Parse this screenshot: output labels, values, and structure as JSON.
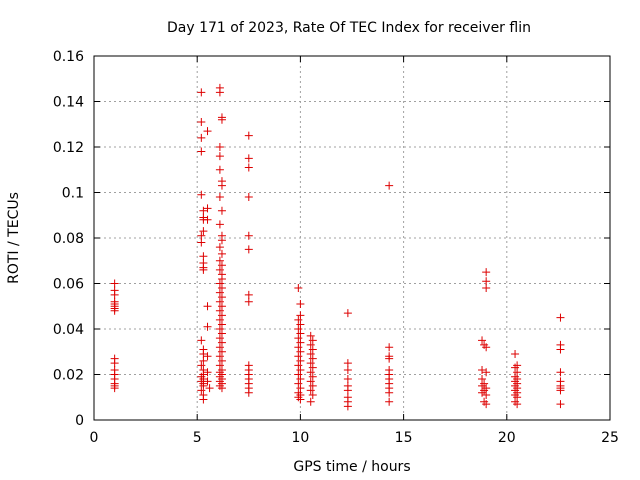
{
  "chart_data": {
    "type": "scatter",
    "title": "Day 171 of 2023, Rate Of TEC Index for receiver flin",
    "xlabel": "GPS time / hours",
    "ylabel": "ROTI / TECUs",
    "xlim": [
      0,
      25
    ],
    "ylim": [
      0,
      0.16
    ],
    "x_ticks": [
      "0",
      "5",
      "10",
      "15",
      "20",
      "25"
    ],
    "y_ticks": [
      "0",
      "0.02",
      "0.04",
      "0.06",
      "0.08",
      "0.1",
      "0.12",
      "0.14",
      "0.16"
    ],
    "grid": true,
    "marker": "plus",
    "color": "#dd0000",
    "series": [
      {
        "points": [
          [
            1.0,
            0.06
          ],
          [
            1.0,
            0.057
          ],
          [
            1.0,
            0.055
          ],
          [
            1.0,
            0.052
          ],
          [
            1.0,
            0.051
          ],
          [
            1.0,
            0.05
          ],
          [
            1.0,
            0.049
          ],
          [
            1.0,
            0.048
          ],
          [
            1.0,
            0.027
          ],
          [
            1.0,
            0.025
          ],
          [
            1.0,
            0.022
          ],
          [
            1.0,
            0.02
          ],
          [
            1.0,
            0.018
          ],
          [
            1.0,
            0.016
          ],
          [
            1.0,
            0.015
          ],
          [
            1.0,
            0.014
          ],
          [
            5.2,
            0.144
          ],
          [
            5.2,
            0.131
          ],
          [
            5.2,
            0.124
          ],
          [
            5.2,
            0.118
          ],
          [
            5.2,
            0.099
          ],
          [
            5.3,
            0.092
          ],
          [
            5.3,
            0.089
          ],
          [
            5.3,
            0.088
          ],
          [
            5.3,
            0.083
          ],
          [
            5.2,
            0.081
          ],
          [
            5.2,
            0.078
          ],
          [
            5.3,
            0.072
          ],
          [
            5.3,
            0.069
          ],
          [
            5.3,
            0.067
          ],
          [
            5.3,
            0.066
          ],
          [
            5.5,
            0.127
          ],
          [
            5.5,
            0.093
          ],
          [
            5.5,
            0.088
          ],
          [
            5.5,
            0.05
          ],
          [
            5.5,
            0.041
          ],
          [
            5.2,
            0.035
          ],
          [
            5.3,
            0.031
          ],
          [
            5.3,
            0.029
          ],
          [
            5.3,
            0.026
          ],
          [
            5.2,
            0.024
          ],
          [
            5.3,
            0.022
          ],
          [
            5.3,
            0.02
          ],
          [
            5.2,
            0.019
          ],
          [
            5.3,
            0.018
          ],
          [
            5.2,
            0.017
          ],
          [
            5.3,
            0.016
          ],
          [
            5.3,
            0.015
          ],
          [
            5.2,
            0.013
          ],
          [
            5.3,
            0.011
          ],
          [
            5.3,
            0.009
          ],
          [
            5.5,
            0.028
          ],
          [
            5.5,
            0.021
          ],
          [
            5.5,
            0.017
          ],
          [
            5.6,
            0.014
          ],
          [
            6.1,
            0.146
          ],
          [
            6.1,
            0.144
          ],
          [
            6.2,
            0.133
          ],
          [
            6.2,
            0.132
          ],
          [
            6.1,
            0.12
          ],
          [
            6.1,
            0.116
          ],
          [
            6.1,
            0.11
          ],
          [
            6.2,
            0.105
          ],
          [
            6.2,
            0.103
          ],
          [
            6.1,
            0.098
          ],
          [
            6.2,
            0.092
          ],
          [
            6.1,
            0.086
          ],
          [
            6.2,
            0.081
          ],
          [
            6.2,
            0.079
          ],
          [
            6.1,
            0.076
          ],
          [
            6.2,
            0.073
          ],
          [
            6.1,
            0.07
          ],
          [
            6.2,
            0.068
          ],
          [
            6.1,
            0.066
          ],
          [
            6.2,
            0.064
          ],
          [
            6.2,
            0.062
          ],
          [
            6.1,
            0.06
          ],
          [
            6.2,
            0.058
          ],
          [
            6.1,
            0.056
          ],
          [
            6.2,
            0.054
          ],
          [
            6.1,
            0.052
          ],
          [
            6.2,
            0.05
          ],
          [
            6.1,
            0.048
          ],
          [
            6.2,
            0.046
          ],
          [
            6.1,
            0.044
          ],
          [
            6.2,
            0.042
          ],
          [
            6.1,
            0.04
          ],
          [
            6.2,
            0.038
          ],
          [
            6.1,
            0.036
          ],
          [
            6.2,
            0.034
          ],
          [
            6.1,
            0.032
          ],
          [
            6.2,
            0.03
          ],
          [
            6.1,
            0.028
          ],
          [
            6.2,
            0.026
          ],
          [
            6.1,
            0.024
          ],
          [
            6.2,
            0.022
          ],
          [
            6.1,
            0.021
          ],
          [
            6.2,
            0.02
          ],
          [
            6.1,
            0.019
          ],
          [
            6.2,
            0.018
          ],
          [
            6.1,
            0.017
          ],
          [
            6.2,
            0.016
          ],
          [
            6.1,
            0.015
          ],
          [
            6.2,
            0.014
          ],
          [
            7.5,
            0.125
          ],
          [
            7.5,
            0.115
          ],
          [
            7.5,
            0.111
          ],
          [
            7.5,
            0.098
          ],
          [
            7.5,
            0.081
          ],
          [
            7.5,
            0.075
          ],
          [
            7.5,
            0.055
          ],
          [
            7.5,
            0.052
          ],
          [
            7.5,
            0.024
          ],
          [
            7.5,
            0.022
          ],
          [
            7.5,
            0.02
          ],
          [
            7.5,
            0.018
          ],
          [
            7.5,
            0.016
          ],
          [
            7.5,
            0.014
          ],
          [
            7.5,
            0.012
          ],
          [
            9.9,
            0.058
          ],
          [
            10.0,
            0.051
          ],
          [
            10.0,
            0.046
          ],
          [
            9.9,
            0.044
          ],
          [
            10.0,
            0.042
          ],
          [
            9.9,
            0.04
          ],
          [
            10.0,
            0.038
          ],
          [
            9.9,
            0.036
          ],
          [
            10.0,
            0.034
          ],
          [
            9.9,
            0.032
          ],
          [
            10.0,
            0.03
          ],
          [
            9.9,
            0.028
          ],
          [
            10.0,
            0.026
          ],
          [
            9.9,
            0.024
          ],
          [
            10.0,
            0.022
          ],
          [
            9.9,
            0.02
          ],
          [
            10.0,
            0.018
          ],
          [
            9.9,
            0.016
          ],
          [
            10.0,
            0.014
          ],
          [
            9.9,
            0.012
          ],
          [
            10.0,
            0.011
          ],
          [
            9.9,
            0.01
          ],
          [
            10.0,
            0.009
          ],
          [
            10.5,
            0.037
          ],
          [
            10.6,
            0.035
          ],
          [
            10.5,
            0.033
          ],
          [
            10.6,
            0.031
          ],
          [
            10.5,
            0.029
          ],
          [
            10.6,
            0.027
          ],
          [
            10.5,
            0.025
          ],
          [
            10.6,
            0.023
          ],
          [
            10.5,
            0.021
          ],
          [
            10.6,
            0.019
          ],
          [
            10.5,
            0.017
          ],
          [
            10.6,
            0.015
          ],
          [
            10.5,
            0.013
          ],
          [
            10.6,
            0.011
          ],
          [
            10.5,
            0.008
          ],
          [
            12.3,
            0.047
          ],
          [
            12.3,
            0.025
          ],
          [
            12.3,
            0.022
          ],
          [
            12.3,
            0.018
          ],
          [
            12.3,
            0.015
          ],
          [
            12.3,
            0.013
          ],
          [
            12.3,
            0.01
          ],
          [
            12.3,
            0.008
          ],
          [
            12.3,
            0.006
          ],
          [
            14.3,
            0.103
          ],
          [
            14.3,
            0.032
          ],
          [
            14.3,
            0.028
          ],
          [
            14.3,
            0.027
          ],
          [
            14.3,
            0.022
          ],
          [
            14.3,
            0.02
          ],
          [
            14.3,
            0.018
          ],
          [
            14.3,
            0.016
          ],
          [
            14.3,
            0.014
          ],
          [
            14.3,
            0.012
          ],
          [
            14.3,
            0.008
          ],
          [
            18.8,
            0.035
          ],
          [
            18.9,
            0.033
          ],
          [
            19.0,
            0.032
          ],
          [
            18.8,
            0.022
          ],
          [
            19.0,
            0.021
          ],
          [
            18.8,
            0.018
          ],
          [
            18.9,
            0.016
          ],
          [
            18.8,
            0.015
          ],
          [
            19.0,
            0.014
          ],
          [
            18.9,
            0.013
          ],
          [
            18.8,
            0.012
          ],
          [
            19.0,
            0.011
          ],
          [
            18.9,
            0.008
          ],
          [
            19.0,
            0.007
          ],
          [
            19.0,
            0.065
          ],
          [
            19.0,
            0.061
          ],
          [
            19.0,
            0.058
          ],
          [
            20.4,
            0.029
          ],
          [
            20.5,
            0.024
          ],
          [
            20.4,
            0.023
          ],
          [
            20.5,
            0.021
          ],
          [
            20.4,
            0.019
          ],
          [
            20.5,
            0.018
          ],
          [
            20.4,
            0.017
          ],
          [
            20.5,
            0.016
          ],
          [
            20.4,
            0.015
          ],
          [
            20.5,
            0.014
          ],
          [
            20.4,
            0.013
          ],
          [
            20.5,
            0.012
          ],
          [
            20.4,
            0.011
          ],
          [
            20.5,
            0.01
          ],
          [
            20.4,
            0.008
          ],
          [
            20.5,
            0.007
          ],
          [
            22.6,
            0.045
          ],
          [
            22.6,
            0.033
          ],
          [
            22.6,
            0.031
          ],
          [
            22.6,
            0.021
          ],
          [
            22.6,
            0.017
          ],
          [
            22.6,
            0.015
          ],
          [
            22.6,
            0.014
          ],
          [
            22.6,
            0.013
          ],
          [
            22.6,
            0.007
          ]
        ]
      }
    ]
  }
}
